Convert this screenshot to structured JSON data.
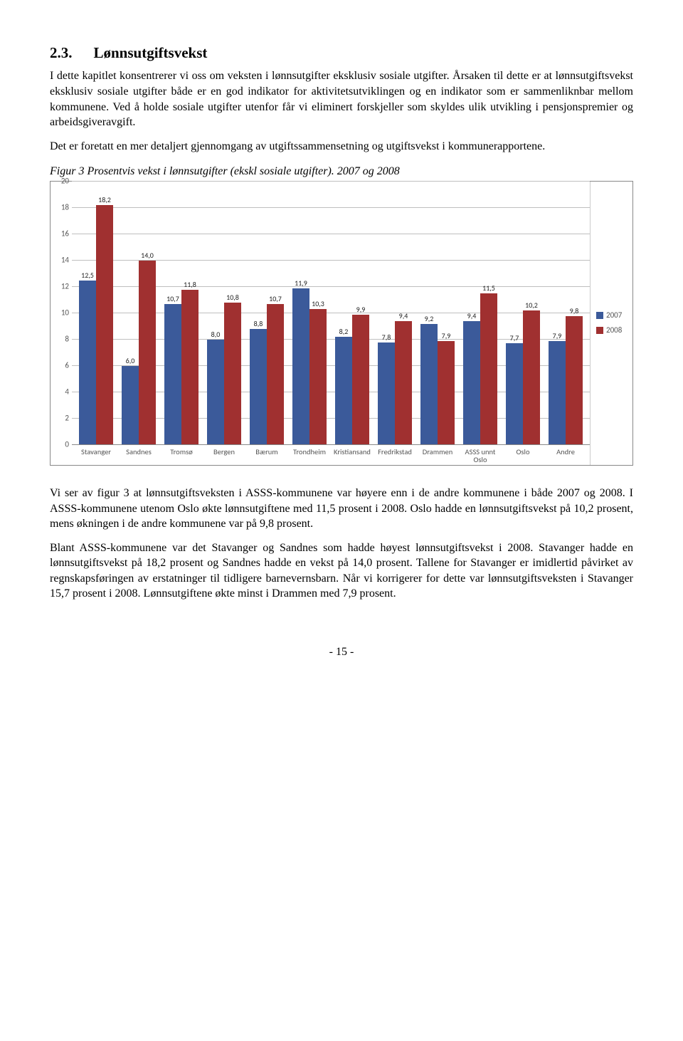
{
  "heading": {
    "num": "2.3.",
    "title": "Lønnsutgiftsvekst"
  },
  "paragraphs": {
    "p1": "I dette kapitlet konsentrerer vi oss om veksten i lønnsutgifter eksklusiv sosiale utgifter. Årsaken til dette er at lønnsutgiftsvekst eksklusiv sosiale utgifter både er en god indikator for aktivitetsutviklingen og en indikator som er sammenliknbar mellom kommunene. Ved å holde sosiale utgifter utenfor får vi eliminert forskjeller som skyldes ulik utvikling i pensjonspremier og arbeidsgiveravgift.",
    "p2": "Det er foretatt en mer detaljert gjennomgang av utgiftssammensetning og utgiftsvekst i kommunerapportene.",
    "p3": "Vi ser av figur 3 at lønnsutgiftsveksten i ASSS-kommunene var høyere enn i de andre kommunene i både 2007 og 2008. I ASSS-kommunene utenom Oslo økte lønnsutgiftene med 11,5 prosent i 2008. Oslo hadde en lønnsutgiftsvekst på 10,2 prosent, mens økningen i de andre kommunene var på 9,8 prosent.",
    "p4": "Blant ASSS-kommunene var det Stavanger og Sandnes som hadde høyest lønnsutgiftsvekst i 2008. Stavanger hadde en lønnsutgiftsvekst på 18,2 prosent og Sandnes hadde en vekst på 14,0 prosent. Tallene for Stavanger er imidlertid påvirket av regnskapsføringen av erstatninger til tidligere barnevernsbarn. Når vi korrigerer for dette var lønnsutgiftsveksten i Stavanger 15,7 prosent i 2008. Lønnsutgiftene økte minst i Drammen med 7,9 prosent."
  },
  "figure_title": "Figur 3 Prosentvis vekst i lønnsutgifter (ekskl sosiale utgifter). 2007 og 2008",
  "chart": {
    "type": "bar",
    "ylim": [
      0,
      20
    ],
    "ytick_step": 2,
    "yticks": [
      0,
      2,
      4,
      6,
      8,
      10,
      12,
      14,
      16,
      18,
      20
    ],
    "series": [
      {
        "name": "2007",
        "color": "#3b5a9a"
      },
      {
        "name": "2008",
        "color": "#a03030"
      }
    ],
    "categories": [
      "Stavanger",
      "Sandnes",
      "Tromsø",
      "Bergen",
      "Bærum",
      "Trondheim",
      "Kristiansand",
      "Fredrikstad",
      "Drammen",
      "ASSS unnt Oslo",
      "Oslo",
      "Andre"
    ],
    "data": {
      "2007": [
        12.5,
        6.0,
        10.7,
        8.0,
        8.8,
        11.9,
        8.2,
        7.8,
        9.2,
        9.4,
        7.7,
        7.9
      ],
      "2008": [
        18.2,
        14.0,
        11.8,
        10.8,
        10.7,
        10.3,
        9.9,
        9.4,
        7.9,
        11.5,
        10.2,
        9.8
      ]
    },
    "labels": {
      "2007": [
        "12,5",
        "6,0",
        "10,7",
        "8,0",
        "8,8",
        "11,9",
        "8,2",
        "7,8",
        "9,2",
        "9,4",
        "7,7",
        "7,9"
      ],
      "2008": [
        "18,2",
        "14,0",
        "11,8",
        "10,8",
        "10,7",
        "10,3",
        "9,9",
        "9,4",
        "7,9",
        "11,5",
        "10,2",
        "9,8"
      ]
    },
    "grid_color": "#bfbfbf",
    "background_color": "#ffffff"
  },
  "page_number": "- 15 -"
}
